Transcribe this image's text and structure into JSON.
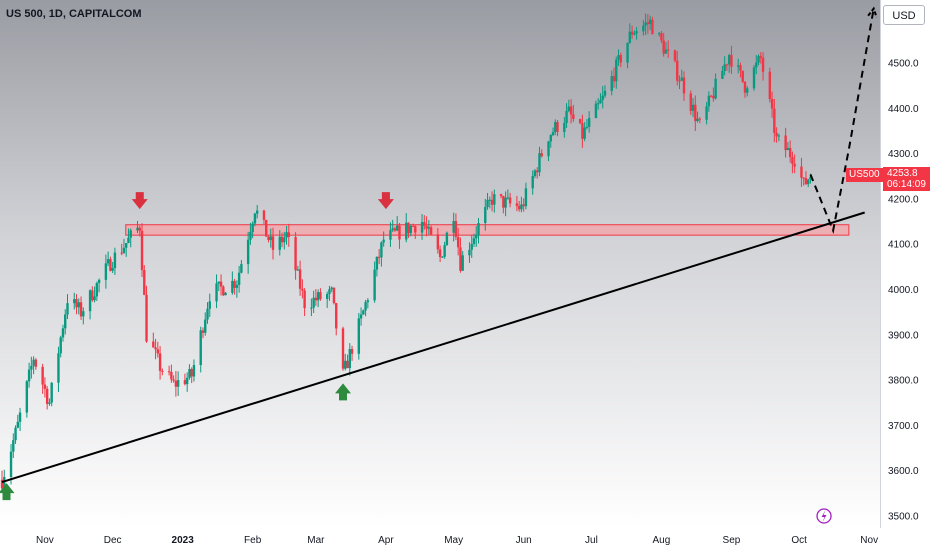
{
  "header": {
    "title": "US 500, 1D, CAPITALCOM",
    "currency": "USD"
  },
  "price_label": {
    "symbol": "US500",
    "price": "4253.8",
    "countdown": "06:14:09"
  },
  "colors": {
    "up": "#089981",
    "down": "#f23645",
    "zone_fill": "#f5a3a8",
    "zone_stroke": "#f23645",
    "arrow_red": "#d9313f",
    "arrow_green": "#2e8b3d",
    "trendline": "#000000",
    "event_icon": "#a020c0"
  },
  "chart_data": {
    "type": "candlestick",
    "title": "US 500, 1D, CAPITALCOM",
    "symbol": "US500",
    "last_price": 4253.8,
    "y_ticks": [
      3500,
      3600,
      3700,
      3800,
      3900,
      4000,
      4100,
      4200,
      4300,
      4400,
      4500
    ],
    "y_tick_labels": [
      "3500.0",
      "3600.0",
      "3700.0",
      "3800.0",
      "3900.0",
      "4000.0",
      "4100.0",
      "4200.0",
      "4300.0",
      "4400.0",
      "4500.0"
    ],
    "ylim": [
      3470,
      4610
    ],
    "x_ticks": [
      {
        "label": "Nov",
        "date": "2022-11-01",
        "bold": false
      },
      {
        "label": "Dec",
        "date": "2022-12-01",
        "bold": false
      },
      {
        "label": "2023",
        "date": "2023-01-01",
        "bold": true
      },
      {
        "label": "Feb",
        "date": "2023-02-01",
        "bold": false
      },
      {
        "label": "Mar",
        "date": "2023-03-01",
        "bold": false
      },
      {
        "label": "Apr",
        "date": "2023-04-01",
        "bold": false
      },
      {
        "label": "May",
        "date": "2023-05-01",
        "bold": false
      },
      {
        "label": "Jun",
        "date": "2023-06-01",
        "bold": false
      },
      {
        "label": "Jul",
        "date": "2023-07-01",
        "bold": false
      },
      {
        "label": "Aug",
        "date": "2023-08-01",
        "bold": false
      },
      {
        "label": "Sep",
        "date": "2023-09-01",
        "bold": false
      },
      {
        "label": "Oct",
        "date": "2023-10-01",
        "bold": false
      },
      {
        "label": "Nov",
        "date": "2023-11-01",
        "bold": false
      }
    ],
    "price_path": [
      [
        "2022-10-13",
        3580
      ],
      [
        "2022-10-20",
        3700
      ],
      [
        "2022-10-27",
        3850
      ],
      [
        "2022-11-03",
        3750
      ],
      [
        "2022-11-11",
        3980
      ],
      [
        "2022-11-17",
        3950
      ],
      [
        "2022-11-30",
        4060
      ],
      [
        "2022-12-13",
        4140
      ],
      [
        "2022-12-16",
        3900
      ],
      [
        "2022-12-22",
        3830
      ],
      [
        "2022-12-28",
        3790
      ],
      [
        "2023-01-05",
        3810
      ],
      [
        "2023-01-13",
        3990
      ],
      [
        "2023-01-25",
        4020
      ],
      [
        "2023-02-02",
        4180
      ],
      [
        "2023-02-10",
        4090
      ],
      [
        "2023-02-16",
        4120
      ],
      [
        "2023-02-24",
        3970
      ],
      [
        "2023-03-08",
        3990
      ],
      [
        "2023-03-13",
        3810
      ],
      [
        "2023-03-22",
        3950
      ],
      [
        "2023-03-31",
        4110
      ],
      [
        "2023-04-17",
        4150
      ],
      [
        "2023-04-25",
        4070
      ],
      [
        "2023-05-01",
        4170
      ],
      [
        "2023-05-04",
        4060
      ],
      [
        "2023-05-18",
        4200
      ],
      [
        "2023-05-31",
        4180
      ],
      [
        "2023-06-12",
        4340
      ],
      [
        "2023-06-21",
        4390
      ],
      [
        "2023-06-27",
        4340
      ],
      [
        "2023-07-06",
        4420
      ],
      [
        "2023-07-19",
        4570
      ],
      [
        "2023-07-27",
        4590
      ],
      [
        "2023-08-10",
        4460
      ],
      [
        "2023-08-18",
        4360
      ],
      [
        "2023-08-31",
        4520
      ],
      [
        "2023-09-07",
        4450
      ],
      [
        "2023-09-14",
        4510
      ],
      [
        "2023-09-21",
        4330
      ],
      [
        "2023-09-29",
        4290
      ],
      [
        "2023-10-03",
        4230
      ],
      [
        "2023-10-06",
        4253.8
      ]
    ],
    "resistance_zone": {
      "low": 4120,
      "high": 4143,
      "start": "2022-12-13",
      "end": "2023-10-23"
    },
    "trendline": {
      "start": {
        "date": "2022-10-13",
        "price": 3575
      },
      "end": {
        "date": "2023-10-30",
        "price": 4170
      }
    },
    "projection": [
      {
        "date": "2023-10-06",
        "price": 4253.8
      },
      {
        "date": "2023-10-16",
        "price": 4130
      },
      {
        "date": "2023-10-23",
        "price": 4310
      },
      {
        "date": "2023-11-03",
        "price": 4620
      }
    ],
    "markers": [
      {
        "kind": "arrow-down",
        "date": "2022-12-13",
        "price": 4195
      },
      {
        "kind": "arrow-down",
        "date": "2023-04-01",
        "price": 4195
      },
      {
        "kind": "arrow-up",
        "date": "2023-03-13",
        "price": 3775
      },
      {
        "kind": "arrow-up",
        "date": "2022-10-15",
        "price": 3555
      }
    ],
    "event_icon_date": "2023-10-12"
  }
}
